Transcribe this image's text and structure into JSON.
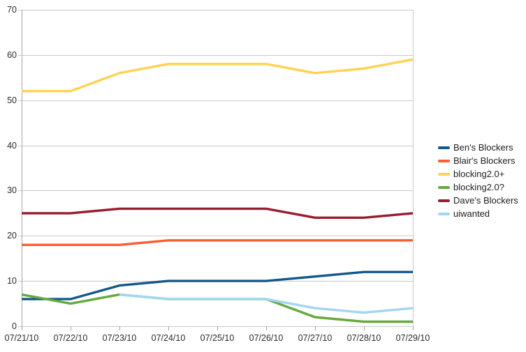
{
  "chart_data": {
    "type": "line",
    "title": "",
    "xlabel": "",
    "ylabel": "",
    "x": [
      "07/21/10",
      "07/22/10",
      "07/23/10",
      "07/24/10",
      "07/25/10",
      "07/26/10",
      "07/27/10",
      "07/28/10",
      "07/29/10"
    ],
    "series": [
      {
        "name": "Ben's Blockers",
        "color": "#14578B",
        "values": [
          6,
          6,
          9,
          10,
          10,
          10,
          11,
          12,
          12
        ]
      },
      {
        "name": "Blair's Blockers",
        "color": "#FB5D30",
        "values": [
          18,
          18,
          18,
          19,
          19,
          19,
          19,
          19,
          19
        ]
      },
      {
        "name": "blocking2.0+",
        "color": "#FFD34F",
        "values": [
          52,
          52,
          56,
          58,
          58,
          58,
          56,
          57,
          59
        ]
      },
      {
        "name": "blocking2.0?",
        "color": "#67A93C",
        "values": [
          7,
          5,
          7,
          6,
          6,
          6,
          2,
          1,
          1
        ]
      },
      {
        "name": "Dave's Blockers",
        "color": "#9C1B30",
        "values": [
          25,
          25,
          26,
          26,
          26,
          26,
          24,
          24,
          25
        ]
      },
      {
        "name": "uiwanted",
        "color": "#A3D6F2",
        "values": [
          null,
          null,
          7,
          6,
          6,
          6,
          4,
          3,
          4
        ]
      }
    ],
    "ylim": [
      0,
      70
    ],
    "yticks": [
      0,
      10,
      20,
      30,
      40,
      50,
      60,
      70
    ],
    "grid": "horizontal",
    "legend_position": "right",
    "background_color": "#ffffff",
    "grid_color": "#c9c9c9",
    "axis_color": "#a3a3a3",
    "label_color": "#2b2b2b",
    "line_width": 3.4
  }
}
